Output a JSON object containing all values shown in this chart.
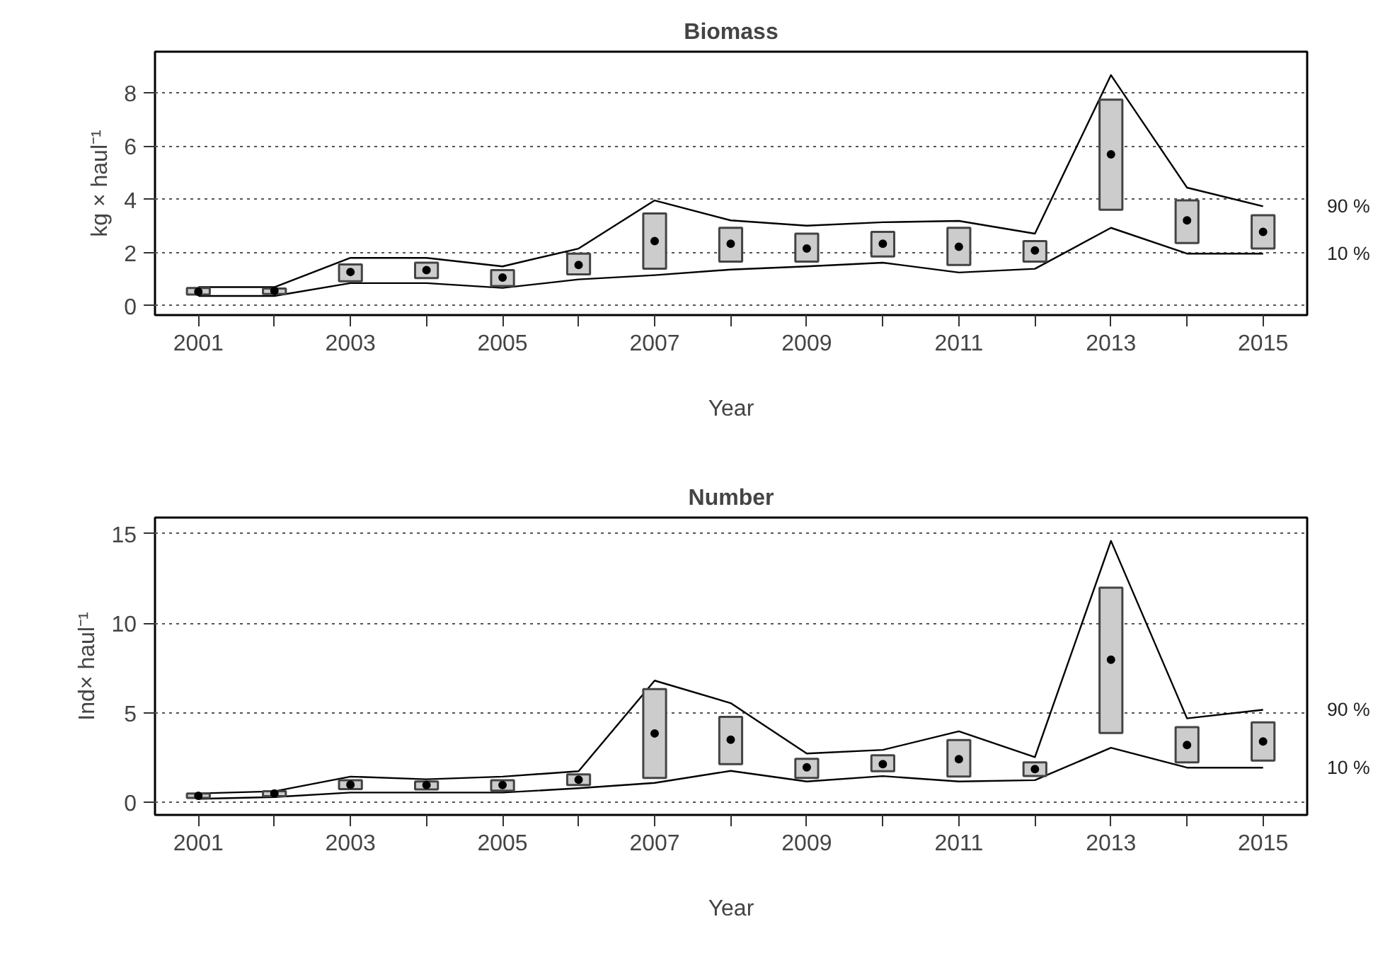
{
  "chart_data": [
    {
      "type": "bar",
      "title": "Biomass",
      "xlabel": "Year",
      "ylabel": "kg × haul⁻¹",
      "grid": "y",
      "x": [
        2001,
        2002,
        2003,
        2004,
        2005,
        2006,
        2007,
        2008,
        2009,
        2010,
        2011,
        2012,
        2013,
        2014,
        2015
      ],
      "xlim": [
        2000.43,
        2015.58
      ],
      "xticks": [
        2001,
        {
          "value": 2002,
          "label": null
        },
        2003,
        {
          "value": 2004,
          "label": null
        },
        2005,
        {
          "value": 2006,
          "label": null
        },
        2007,
        {
          "value": 2008,
          "label": null
        },
        2009,
        {
          "value": 2010,
          "label": null
        },
        2011,
        {
          "value": 2012,
          "label": null
        },
        2013,
        {
          "value": 2014,
          "label": null
        },
        2015
      ],
      "ylim": [
        -0.35,
        9.55
      ],
      "yticks": [
        0,
        2,
        4,
        6,
        8
      ],
      "series": [
        {
          "color": "#cccccc",
          "base": [
            0.42,
            0.44,
            0.92,
            1.04,
            0.74,
            1.18,
            1.39,
            1.66,
            1.66,
            1.85,
            1.53,
            1.66,
            3.61,
            2.36,
            2.15
          ],
          "values": [
            0.25,
            0.21,
            0.63,
            0.58,
            0.6,
            0.78,
            2.08,
            1.27,
            1.05,
            0.93,
            1.4,
            0.77,
            4.14,
            1.6,
            1.25
          ]
        },
        {
          "type": "scatter",
          "color": "#000000",
          "marker": "circle",
          "values": [
            0.53,
            0.56,
            1.27,
            1.34,
            1.06,
            1.53,
            2.43,
            2.33,
            2.15,
            2.33,
            2.22,
            2.08,
            5.69,
            3.21,
            2.78
          ]
        },
        {
          "type": "line",
          "name": "90 %",
          "color": "#000000",
          "line_style": "solid",
          "values": [
            0.7,
            0.7,
            1.8,
            1.8,
            1.48,
            2.15,
            3.96,
            3.21,
            3.01,
            3.14,
            3.19,
            2.71,
            8.67,
            4.44,
            3.74
          ]
        },
        {
          "type": "line",
          "name": "10 %",
          "color": "#000000",
          "line_style": "solid",
          "values": [
            0.37,
            0.37,
            0.85,
            0.85,
            0.67,
            0.99,
            1.15,
            1.36,
            1.48,
            1.62,
            1.25,
            1.39,
            2.93,
            1.96,
            1.96
          ]
        }
      ]
    },
    {
      "type": "bar",
      "title": "Number",
      "xlabel": "Year",
      "ylabel": "Ind× haul⁻¹",
      "grid": "y",
      "x": [
        2001,
        2002,
        2003,
        2004,
        2005,
        2006,
        2007,
        2008,
        2009,
        2010,
        2011,
        2012,
        2013,
        2014,
        2015
      ],
      "xlim": [
        2000.43,
        2015.58
      ],
      "xticks": [
        2001,
        {
          "value": 2002,
          "label": null
        },
        2003,
        {
          "value": 2004,
          "label": null
        },
        2005,
        {
          "value": 2006,
          "label": null
        },
        2007,
        {
          "value": 2008,
          "label": null
        },
        2009,
        {
          "value": 2010,
          "label": null
        },
        2011,
        {
          "value": 2012,
          "label": null
        },
        2013,
        {
          "value": 2014,
          "label": null
        },
        2015
      ],
      "ylim": [
        -0.7,
        15.9
      ],
      "yticks": [
        0,
        5,
        10,
        15
      ],
      "series": [
        {
          "color": "#cccccc",
          "base": [
            0.25,
            0.35,
            0.74,
            0.72,
            0.65,
            0.97,
            1.37,
            2.14,
            1.37,
            1.74,
            1.44,
            1.47,
            3.87,
            2.23,
            2.33
          ],
          "values": [
            0.25,
            0.27,
            0.5,
            0.45,
            0.59,
            0.59,
            4.96,
            2.63,
            1.06,
            0.89,
            2.04,
            0.76,
            8.12,
            1.97,
            2.14
          ]
        },
        {
          "type": "scatter",
          "color": "#000000",
          "marker": "circle",
          "values": [
            0.37,
            0.5,
            0.99,
            0.97,
            0.97,
            1.27,
            3.85,
            3.5,
            1.96,
            2.14,
            2.41,
            1.86,
            7.97,
            3.2,
            3.4
          ]
        },
        {
          "type": "line",
          "name": "90 %",
          "color": "#000000",
          "line_style": "solid",
          "values": [
            0.5,
            0.62,
            1.44,
            1.29,
            1.44,
            1.74,
            6.8,
            5.54,
            2.73,
            2.93,
            3.97,
            2.53,
            14.6,
            4.69,
            5.17
          ]
        },
        {
          "type": "line",
          "name": "10 %",
          "color": "#000000",
          "line_style": "solid",
          "values": [
            0.2,
            0.3,
            0.55,
            0.55,
            0.55,
            0.79,
            1.09,
            1.76,
            1.17,
            1.47,
            1.17,
            1.24,
            3.05,
            1.94,
            1.94
          ]
        }
      ]
    }
  ]
}
